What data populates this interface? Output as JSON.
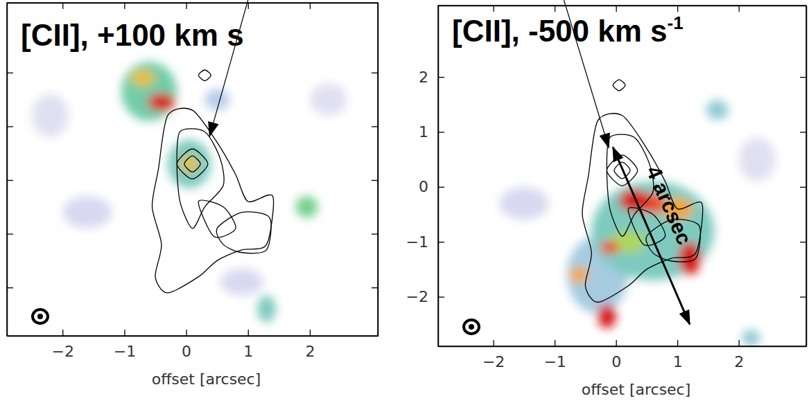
{
  "chart_data": [
    {
      "type": "heatmap",
      "title": "[CII], +100 km s",
      "xlabel": "offset [arcsec]",
      "xlim": [
        -2.9,
        3.1
      ],
      "ylim": [
        -2.9,
        3.3
      ],
      "xticks": [
        -2,
        -1,
        0,
        1,
        2
      ],
      "yticks": [
        -2,
        -1,
        0,
        1,
        2
      ],
      "tick_labels": "x",
      "level_range": [
        0,
        1
      ],
      "emission": [
        {
          "x": -0.6,
          "y": 1.65,
          "rx": 0.45,
          "ry": 0.55,
          "level": 0.45
        },
        {
          "x": -0.4,
          "y": 1.45,
          "rx": 0.22,
          "ry": 0.16,
          "level": 1.0
        },
        {
          "x": -0.7,
          "y": 1.9,
          "rx": 0.2,
          "ry": 0.15,
          "level": 0.7
        },
        {
          "x": 0.05,
          "y": 0.3,
          "rx": 0.35,
          "ry": 0.45,
          "level": 0.4
        },
        {
          "x": 0.05,
          "y": 0.3,
          "rx": 0.15,
          "ry": 0.15,
          "level": 0.7
        },
        {
          "x": 0.5,
          "y": 1.5,
          "rx": 0.2,
          "ry": 0.2,
          "level": 0.25
        },
        {
          "x": 1.95,
          "y": -0.5,
          "rx": 0.18,
          "ry": 0.2,
          "level": 0.5
        },
        {
          "x": 1.3,
          "y": -2.4,
          "rx": 0.15,
          "ry": 0.25,
          "level": 0.4
        },
        {
          "x": -1.6,
          "y": -0.6,
          "rx": 0.4,
          "ry": 0.3,
          "level": 0.15
        },
        {
          "x": 0.9,
          "y": -1.9,
          "rx": 0.35,
          "ry": 0.25,
          "level": 0.15
        },
        {
          "x": -2.2,
          "y": 1.2,
          "rx": 0.3,
          "ry": 0.4,
          "level": 0.12
        },
        {
          "x": 2.3,
          "y": 1.5,
          "rx": 0.3,
          "ry": 0.3,
          "level": 0.12
        }
      ],
      "contours": [
        [
          [
            -0.45,
            0.2
          ],
          [
            -0.3,
            1.2
          ],
          [
            0.1,
            1.3
          ],
          [
            0.5,
            0.7
          ],
          [
            0.8,
            0.1
          ],
          [
            1.0,
            -0.4
          ],
          [
            1.4,
            -0.3
          ],
          [
            1.3,
            -1.2
          ],
          [
            0.9,
            -1.3
          ],
          [
            0.5,
            -1.5
          ],
          [
            0.2,
            -1.8
          ],
          [
            -0.3,
            -2.1
          ],
          [
            -0.5,
            -1.8
          ],
          [
            -0.4,
            -1.2
          ],
          [
            -0.55,
            -0.5
          ]
        ],
        [
          [
            -0.15,
            0.3
          ],
          [
            -0.1,
            0.9
          ],
          [
            0.3,
            0.9
          ],
          [
            0.55,
            0.4
          ],
          [
            0.6,
            -0.1
          ],
          [
            0.3,
            -0.5
          ],
          [
            0.1,
            -0.9
          ],
          [
            -0.1,
            -0.4
          ]
        ],
        [
          [
            -0.15,
            0.3
          ],
          [
            0.1,
            0.58
          ],
          [
            0.35,
            0.3
          ],
          [
            0.1,
            0.02
          ]
        ],
        [
          [
            -0.03,
            0.3
          ],
          [
            0.1,
            0.45
          ],
          [
            0.23,
            0.3
          ],
          [
            0.1,
            0.15
          ]
        ],
        [
          [
            0.5,
            -0.9
          ],
          [
            0.9,
            -0.6
          ],
          [
            1.35,
            -0.7
          ],
          [
            1.3,
            -1.3
          ],
          [
            0.9,
            -1.35
          ],
          [
            0.6,
            -1.2
          ]
        ],
        [
          [
            0.2,
            -0.4
          ],
          [
            0.6,
            -0.5
          ],
          [
            0.8,
            -0.9
          ],
          [
            0.45,
            -1.05
          ]
        ],
        [
          [
            0.2,
            1.95
          ],
          [
            0.3,
            2.05
          ],
          [
            0.4,
            1.95
          ],
          [
            0.3,
            1.85
          ]
        ]
      ]
    },
    {
      "type": "heatmap",
      "title": "[CII], -500 km s",
      "title_sup": "-1",
      "xlabel": "offset [arcsec]",
      "xlim": [
        -2.9,
        3.1
      ],
      "ylim": [
        -2.9,
        3.3
      ],
      "xticks": [
        -2,
        -1,
        0,
        1,
        2
      ],
      "yticks": [
        -2,
        -1,
        0,
        1,
        2
      ],
      "tick_labels": true,
      "level_range": [
        0,
        1
      ],
      "annotations": [
        "4 arcsec"
      ],
      "emission": [
        {
          "x": 0.6,
          "y": -0.8,
          "rx": 1.0,
          "ry": 0.9,
          "level": 0.4
        },
        {
          "x": -0.3,
          "y": -1.6,
          "rx": 0.5,
          "ry": 0.7,
          "level": 0.3
        },
        {
          "x": 0.3,
          "y": -0.25,
          "rx": 0.25,
          "ry": 0.2,
          "level": 1.0
        },
        {
          "x": 0.6,
          "y": -0.3,
          "rx": 0.2,
          "ry": 0.18,
          "level": 0.9
        },
        {
          "x": 1.0,
          "y": -0.4,
          "rx": 0.25,
          "ry": 0.2,
          "level": 0.75
        },
        {
          "x": 1.2,
          "y": -1.3,
          "rx": 0.18,
          "ry": 0.3,
          "level": 1.0
        },
        {
          "x": 0.2,
          "y": -1.0,
          "rx": 0.3,
          "ry": 0.2,
          "level": 0.6
        },
        {
          "x": -0.1,
          "y": -1.1,
          "rx": 0.15,
          "ry": 0.12,
          "level": 0.9
        },
        {
          "x": -0.6,
          "y": -1.6,
          "rx": 0.15,
          "ry": 0.15,
          "level": 0.75
        },
        {
          "x": -0.15,
          "y": -2.35,
          "rx": 0.15,
          "ry": 0.22,
          "level": 1.0
        },
        {
          "x": 1.65,
          "y": 1.4,
          "rx": 0.18,
          "ry": 0.18,
          "level": 0.35
        },
        {
          "x": 2.2,
          "y": -2.75,
          "rx": 0.15,
          "ry": 0.15,
          "level": 0.35
        },
        {
          "x": -1.5,
          "y": -0.3,
          "rx": 0.4,
          "ry": 0.3,
          "level": 0.15
        },
        {
          "x": 2.3,
          "y": 0.5,
          "rx": 0.3,
          "ry": 0.4,
          "level": 0.12
        }
      ],
      "contours": [
        [
          [
            -0.45,
            0.2
          ],
          [
            -0.3,
            1.2
          ],
          [
            0.1,
            1.3
          ],
          [
            0.5,
            0.7
          ],
          [
            0.8,
            0.1
          ],
          [
            1.0,
            -0.4
          ],
          [
            1.4,
            -0.3
          ],
          [
            1.3,
            -1.2
          ],
          [
            0.9,
            -1.3
          ],
          [
            0.5,
            -1.5
          ],
          [
            0.2,
            -1.8
          ],
          [
            -0.3,
            -2.1
          ],
          [
            -0.5,
            -1.8
          ],
          [
            -0.4,
            -1.2
          ],
          [
            -0.55,
            -0.5
          ]
        ],
        [
          [
            -0.15,
            0.3
          ],
          [
            -0.1,
            0.9
          ],
          [
            0.3,
            0.9
          ],
          [
            0.55,
            0.4
          ],
          [
            0.6,
            -0.1
          ],
          [
            0.3,
            -0.5
          ],
          [
            0.1,
            -0.9
          ],
          [
            -0.1,
            -0.4
          ]
        ],
        [
          [
            -0.15,
            0.3
          ],
          [
            0.1,
            0.58
          ],
          [
            0.35,
            0.3
          ],
          [
            0.1,
            0.02
          ]
        ],
        [
          [
            -0.03,
            0.3
          ],
          [
            0.1,
            0.45
          ],
          [
            0.23,
            0.3
          ],
          [
            0.1,
            0.15
          ]
        ],
        [
          [
            0.5,
            -0.9
          ],
          [
            0.9,
            -0.6
          ],
          [
            1.35,
            -0.7
          ],
          [
            1.3,
            -1.3
          ],
          [
            0.9,
            -1.35
          ],
          [
            0.6,
            -1.2
          ]
        ],
        [
          [
            0.2,
            -0.4
          ],
          [
            0.6,
            -0.5
          ],
          [
            0.8,
            -0.9
          ],
          [
            0.45,
            -1.05
          ]
        ],
        [
          [
            -0.05,
            1.85
          ],
          [
            0.05,
            1.95
          ],
          [
            0.15,
            1.85
          ],
          [
            0.05,
            1.75
          ]
        ]
      ]
    }
  ]
}
